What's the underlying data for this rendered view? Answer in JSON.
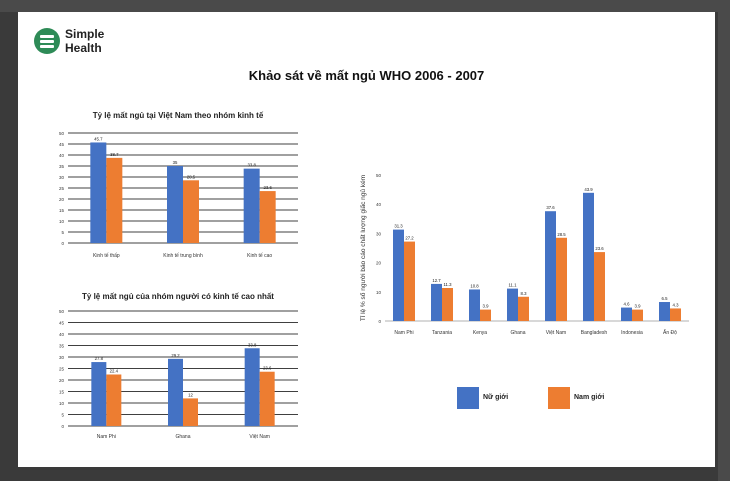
{
  "brand": {
    "line1": "Simple",
    "line2": "Health",
    "accent": "#2e8b57"
  },
  "page_title": "Khảo sát về mất ngủ WHO 2006 - 2007",
  "colors": {
    "female": "#4472c4",
    "male": "#ed7d31"
  },
  "chart_data": [
    {
      "type": "bar",
      "title": "Tỷ lệ mất ngủ tại Việt Nam theo nhóm kinh tế",
      "categories": [
        "Kinh tế thấp",
        "Kinh tế trung bình",
        "Kinh tế cao"
      ],
      "series": [
        {
          "values": [
            45.7,
            35,
            33.8
          ]
        },
        {
          "values": [
            38.7,
            28.5,
            23.6
          ]
        }
      ],
      "ylim": [
        0,
        50
      ],
      "yticks": [
        0,
        5,
        10,
        15,
        20,
        25,
        30,
        35,
        40,
        45,
        50
      ],
      "grid": true
    },
    {
      "type": "bar",
      "title": "Tỷ lệ mất ngủ của nhóm người có kinh tế cao nhất",
      "categories": [
        "Nam Phi",
        "Ghana",
        "Việt Nam"
      ],
      "series": [
        {
          "values": [
            27.8,
            29.2,
            33.8
          ]
        },
        {
          "values": [
            22.4,
            12,
            23.6
          ]
        }
      ],
      "ylim": [
        0,
        50
      ],
      "yticks": [
        0,
        5,
        10,
        15,
        20,
        25,
        30,
        35,
        40,
        45,
        50
      ],
      "grid": true
    },
    {
      "type": "bar",
      "ylabel": "Tỉ lệ % số người báo cáo chất lượng giấc ngủ kém",
      "categories": [
        "Nam Phi",
        "Tanzania",
        "Kenya",
        "Ghana",
        "Việt Nam",
        "Bangladesh",
        "Indonesia",
        "Ấn Độ"
      ],
      "series": [
        {
          "name": "Nữ giới",
          "values": [
            31.3,
            12.7,
            10.8,
            11.1,
            37.6,
            43.9,
            4.6,
            6.5
          ]
        },
        {
          "name": "Nam giới",
          "values": [
            27.2,
            11.3,
            3.9,
            8.3,
            28.5,
            23.6,
            3.9,
            4.3
          ]
        }
      ],
      "ylim": [
        0,
        50
      ],
      "yticks": [
        0,
        10,
        20,
        30,
        40,
        50
      ],
      "grid": false,
      "legend": "bottom"
    }
  ]
}
